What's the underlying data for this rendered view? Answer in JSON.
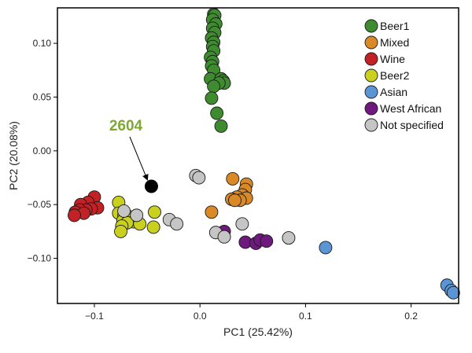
{
  "chart_data": {
    "type": "scatter",
    "xlabel": "PC1 (25.42%)",
    "ylabel": "PC2 (20.08%)",
    "xlim": [
      -0.135,
      0.245
    ],
    "ylim": [
      -0.142,
      0.133
    ],
    "x_ticks": [
      -0.1,
      0.0,
      0.1,
      0.2
    ],
    "x_tick_labels": [
      "−0.1",
      "0.0",
      "0.1",
      "0.2"
    ],
    "y_ticks": [
      0.1,
      0.05,
      0.0,
      -0.05,
      -0.1
    ],
    "y_tick_labels": [
      "0.10",
      "0.05",
      "0.00",
      "−0.05",
      "−0.10"
    ],
    "grid": false,
    "legend_position": "top-right",
    "annotation": {
      "text": "2604",
      "color": "#7ea833",
      "x": -0.046,
      "y": -0.033,
      "point_color": "#000000"
    },
    "series": [
      {
        "name": "Beer1",
        "color": "#3e8c2f",
        "points": [
          [
            0.013,
            0.127
          ],
          [
            0.014,
            0.126
          ],
          [
            0.012,
            0.122
          ],
          [
            0.015,
            0.118
          ],
          [
            0.012,
            0.114
          ],
          [
            0.014,
            0.11
          ],
          [
            0.011,
            0.105
          ],
          [
            0.013,
            0.101
          ],
          [
            0.012,
            0.097
          ],
          [
            0.013,
            0.093
          ],
          [
            0.01,
            0.087
          ],
          [
            0.012,
            0.083
          ],
          [
            0.011,
            0.079
          ],
          [
            0.013,
            0.075
          ],
          [
            0.01,
            0.067
          ],
          [
            0.02,
            0.067
          ],
          [
            0.022,
            0.065
          ],
          [
            0.023,
            0.063
          ],
          [
            0.018,
            0.063
          ],
          [
            0.013,
            0.06
          ],
          [
            0.011,
            0.049
          ],
          [
            0.016,
            0.035
          ],
          [
            0.02,
            0.023
          ]
        ]
      },
      {
        "name": "Mixed",
        "color": "#d98a26",
        "points": [
          [
            0.031,
            -0.026
          ],
          [
            0.044,
            -0.031
          ],
          [
            0.043,
            -0.036
          ],
          [
            0.04,
            -0.041
          ],
          [
            0.035,
            -0.043
          ],
          [
            0.03,
            -0.045
          ],
          [
            0.044,
            -0.044
          ],
          [
            0.038,
            -0.046
          ],
          [
            0.033,
            -0.046
          ],
          [
            0.011,
            -0.057
          ]
        ]
      },
      {
        "name": "Wine",
        "color": "#c22126",
        "points": [
          [
            -0.1,
            -0.043
          ],
          [
            -0.106,
            -0.048
          ],
          [
            -0.113,
            -0.05
          ],
          [
            -0.097,
            -0.053
          ],
          [
            -0.103,
            -0.054
          ],
          [
            -0.108,
            -0.055
          ],
          [
            -0.114,
            -0.055
          ],
          [
            -0.118,
            -0.057
          ],
          [
            -0.11,
            -0.058
          ],
          [
            -0.119,
            -0.06
          ]
        ]
      },
      {
        "name": "Beer2",
        "color": "#c9d11e",
        "points": [
          [
            -0.077,
            -0.048
          ],
          [
            -0.077,
            -0.058
          ],
          [
            -0.072,
            -0.06
          ],
          [
            -0.068,
            -0.061
          ],
          [
            -0.043,
            -0.057
          ],
          [
            -0.073,
            -0.065
          ],
          [
            -0.063,
            -0.066
          ],
          [
            -0.069,
            -0.067
          ],
          [
            -0.074,
            -0.07
          ],
          [
            -0.057,
            -0.068
          ],
          [
            -0.044,
            -0.071
          ],
          [
            -0.075,
            -0.075
          ]
        ]
      },
      {
        "name": "Asian",
        "color": "#5b95d6",
        "points": [
          [
            0.119,
            -0.09
          ],
          [
            0.234,
            -0.125
          ],
          [
            0.238,
            -0.13
          ],
          [
            0.24,
            -0.132
          ]
        ]
      },
      {
        "name": "West African",
        "color": "#6d1a7c",
        "points": [
          [
            0.043,
            -0.085
          ],
          [
            0.053,
            -0.086
          ],
          [
            0.057,
            -0.083
          ],
          [
            0.063,
            -0.084
          ],
          [
            0.023,
            -0.075
          ]
        ]
      },
      {
        "name": "Not specified",
        "color": "#c5c5c5",
        "points": [
          [
            -0.004,
            -0.023
          ],
          [
            -0.001,
            -0.025
          ],
          [
            -0.072,
            -0.056
          ],
          [
            -0.06,
            -0.06
          ],
          [
            -0.029,
            -0.064
          ],
          [
            -0.022,
            -0.068
          ],
          [
            0.04,
            -0.068
          ],
          [
            0.015,
            -0.076
          ],
          [
            0.023,
            -0.08
          ],
          [
            0.084,
            -0.081
          ]
        ]
      }
    ]
  }
}
